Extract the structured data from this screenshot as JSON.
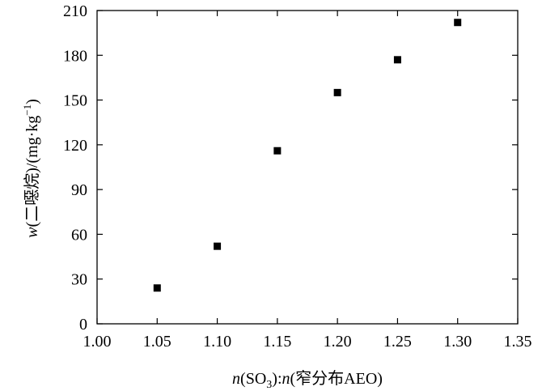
{
  "chart_data": {
    "type": "scatter",
    "title": "",
    "xlabel": {
      "italic_var": "n",
      "open": "(SO",
      "sub": "3",
      "mid": "):",
      "italic_var2": "n",
      "rest": "(窄分布AEO)",
      "full": "n(SO3):n(窄分布AEO)"
    },
    "ylabel": {
      "italic_var": "w",
      "rest": "(二噁烷)/(mg·kg",
      "sup": "−1",
      "close": ")",
      "full": "w(二噁烷)/(mg·kg−1)"
    },
    "xlim": [
      1.0,
      1.35
    ],
    "ylim": [
      0,
      210
    ],
    "xticks": [
      "1.00",
      "1.05",
      "1.10",
      "1.15",
      "1.20",
      "1.25",
      "1.30",
      "1.35"
    ],
    "yticks": [
      "0",
      "30",
      "60",
      "90",
      "120",
      "150",
      "180",
      "210"
    ],
    "grid": false,
    "legend": "none",
    "marker": "square",
    "marker_color": "#000000",
    "x": [
      1.05,
      1.1,
      1.15,
      1.2,
      1.25,
      1.3
    ],
    "y": [
      24,
      52,
      116,
      155,
      177,
      202
    ]
  }
}
